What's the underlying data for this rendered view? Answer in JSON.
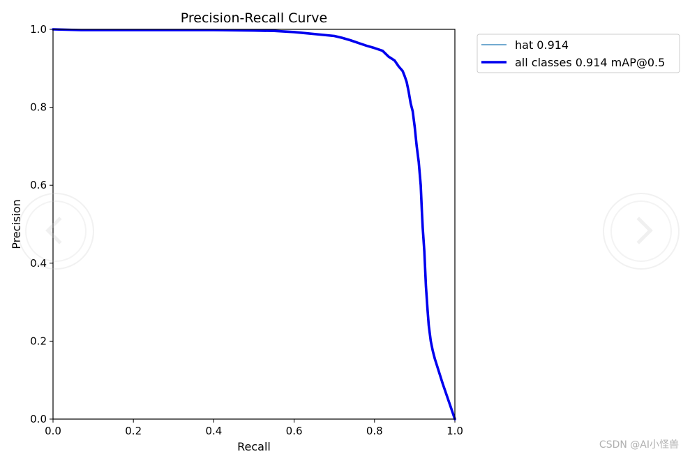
{
  "chart_data": {
    "type": "line",
    "title": "Precision-Recall Curve",
    "xlabel": "Recall",
    "ylabel": "Precision",
    "xlim": [
      0,
      1
    ],
    "ylim": [
      0,
      1
    ],
    "xticks": [
      "0.0",
      "0.2",
      "0.4",
      "0.6",
      "0.8",
      "1.0"
    ],
    "yticks": [
      "0.0",
      "0.2",
      "0.4",
      "0.6",
      "0.8",
      "1.0"
    ],
    "grid": false,
    "legend_position": "outside-top-right",
    "series": [
      {
        "name": "hat 0.914",
        "color": "#1f77b4",
        "style": "thin",
        "x": [
          0.0,
          0.07,
          0.2,
          0.4,
          0.5,
          0.55,
          0.6,
          0.63,
          0.66,
          0.7,
          0.72,
          0.74,
          0.76,
          0.78,
          0.8,
          0.82,
          0.835,
          0.85,
          0.86,
          0.87,
          0.875,
          0.88,
          0.885,
          0.89,
          0.895,
          0.9,
          0.905,
          0.91,
          0.915,
          0.918,
          0.92,
          0.924,
          0.928,
          0.932,
          0.935,
          0.94,
          0.945,
          0.95,
          0.97,
          1.0
        ],
        "y": [
          1.0,
          0.998,
          0.998,
          0.998,
          0.997,
          0.996,
          0.993,
          0.99,
          0.987,
          0.983,
          0.978,
          0.972,
          0.965,
          0.958,
          0.952,
          0.945,
          0.93,
          0.92,
          0.905,
          0.893,
          0.88,
          0.865,
          0.84,
          0.81,
          0.79,
          0.75,
          0.7,
          0.66,
          0.6,
          0.53,
          0.49,
          0.43,
          0.34,
          0.28,
          0.24,
          0.2,
          0.175,
          0.155,
          0.09,
          0.0
        ]
      },
      {
        "name": "all classes 0.914 mAP@0.5",
        "color": "#0000ee",
        "style": "thick",
        "x": [
          0.0,
          0.07,
          0.2,
          0.4,
          0.5,
          0.55,
          0.6,
          0.63,
          0.66,
          0.7,
          0.72,
          0.74,
          0.76,
          0.78,
          0.8,
          0.82,
          0.835,
          0.85,
          0.86,
          0.87,
          0.875,
          0.88,
          0.885,
          0.89,
          0.895,
          0.9,
          0.905,
          0.91,
          0.915,
          0.918,
          0.92,
          0.924,
          0.928,
          0.932,
          0.935,
          0.94,
          0.945,
          0.95,
          0.97,
          1.0
        ],
        "y": [
          1.0,
          0.998,
          0.998,
          0.998,
          0.997,
          0.996,
          0.993,
          0.99,
          0.987,
          0.983,
          0.978,
          0.972,
          0.965,
          0.958,
          0.952,
          0.945,
          0.93,
          0.92,
          0.905,
          0.893,
          0.88,
          0.865,
          0.84,
          0.81,
          0.79,
          0.75,
          0.7,
          0.66,
          0.6,
          0.53,
          0.49,
          0.43,
          0.34,
          0.28,
          0.24,
          0.2,
          0.175,
          0.155,
          0.09,
          0.0
        ]
      }
    ]
  },
  "nav": {
    "prev_icon": "chevron-left-icon",
    "next_icon": "chevron-right-icon"
  },
  "watermark": "CSDN @AI小怪兽"
}
